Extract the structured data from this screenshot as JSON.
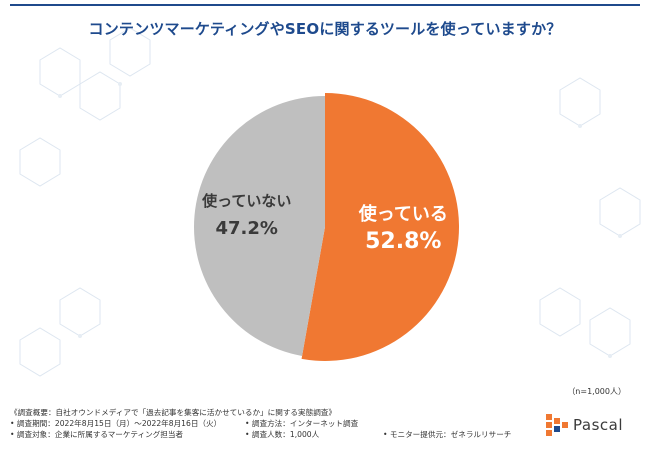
{
  "title": "コンテンツマーケティングやSEOに関するツールを使っていますか？",
  "chart_data": {
    "type": "pie",
    "slices": [
      {
        "label": "使っている",
        "value": 52.8,
        "value_label": "52.8%",
        "color": "#f07832"
      },
      {
        "label": "使っていない",
        "value": 47.2,
        "value_label": "47.2%",
        "color": "#bfbfbf"
      }
    ],
    "start": "top",
    "direction": "clockwise"
  },
  "n_note": "（n=1,000人）",
  "footer": {
    "line1": "《調査概要：自社オウンドメディアで「過去記事を集客に活かせているか」に関する実態調査》",
    "period": "• 調査期間：2022年8月15日（月）〜2022年8月16日（火）",
    "method": "• 調査方法：インターネット調査",
    "target": "• 調査対象：企業に所属するマーケティング担当者",
    "count": "• 調査人数：1,000人",
    "provider": "• モニター提供元：ゼネラルリサーチ"
  },
  "logo": {
    "text": "Pascal",
    "icon": "pascal-logo-icon",
    "colors": [
      "#f07832",
      "#1e4a8d"
    ]
  }
}
